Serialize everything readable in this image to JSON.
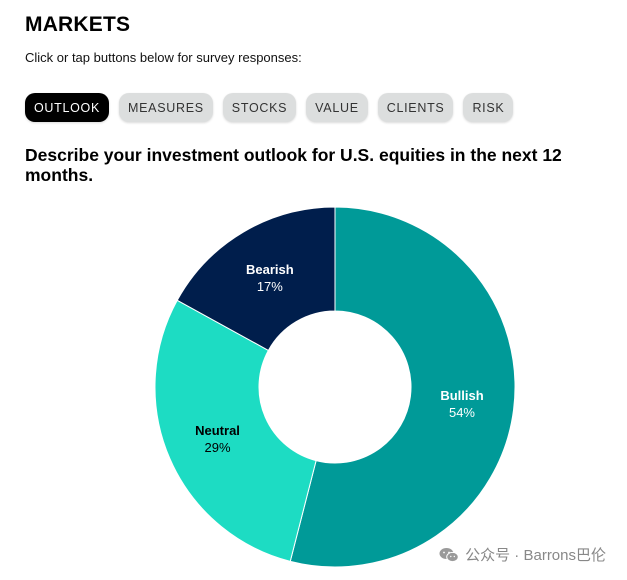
{
  "header": {
    "title": "MARKETS",
    "instructions": "Click or tap buttons below for survey responses:"
  },
  "tabs": [
    {
      "label": "OUTLOOK",
      "active": true
    },
    {
      "label": "MEASURES",
      "active": false
    },
    {
      "label": "STOCKS",
      "active": false
    },
    {
      "label": "VALUE",
      "active": false
    },
    {
      "label": "CLIENTS",
      "active": false
    },
    {
      "label": "RISK",
      "active": false
    }
  ],
  "question": "Describe your investment outlook for U.S. equities in the next 12 months.",
  "chart_data": {
    "type": "pie",
    "donut": true,
    "title": "",
    "slices": [
      {
        "label": "Bullish",
        "value": 54,
        "display": "54%",
        "color": "#009a98",
        "text_color": "#ffffff"
      },
      {
        "label": "Neutral",
        "value": 29,
        "display": "29%",
        "color": "#1ddcc3",
        "text_color": "#000000"
      },
      {
        "label": "Bearish",
        "value": 17,
        "display": "17%",
        "color": "#001e4c",
        "text_color": "#ffffff"
      }
    ]
  },
  "watermark": {
    "text": "公众号 · Barrons巴伦",
    "icon": "wechat-icon"
  }
}
